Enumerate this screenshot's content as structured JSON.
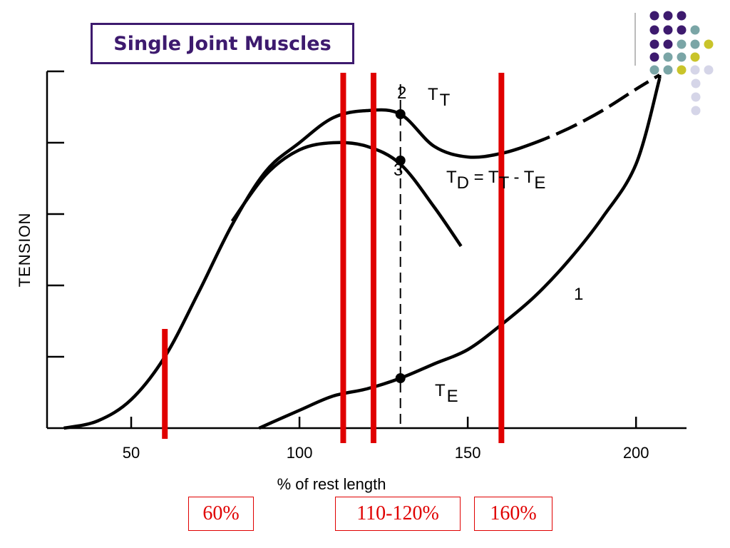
{
  "slide": {
    "title": "Single Joint Muscles",
    "highlights": [
      "60%",
      "110-120%",
      "160%"
    ]
  },
  "colors": {
    "accent": "#3d1a6e",
    "highlight": "#e00000",
    "dots": [
      "#3d1a6e",
      "#7aa5a6",
      "#c9c42a",
      "#d5d5e8"
    ]
  },
  "chart_data": {
    "type": "line",
    "title": "",
    "xlabel": "% of rest length",
    "ylabel": "TENSION",
    "xlim": [
      25,
      215
    ],
    "ylim": [
      0,
      5
    ],
    "xticks": [
      50,
      100,
      150,
      200
    ],
    "xtick_labels": [
      "50",
      "100",
      "150",
      "200"
    ],
    "yticks": [
      1,
      2,
      3,
      4,
      5
    ],
    "series": [
      {
        "name": "1",
        "x": [
          88,
          100,
          110,
          120,
          130,
          140,
          150,
          160,
          170,
          180,
          190,
          200,
          207
        ],
        "y": [
          0.0,
          0.25,
          0.45,
          0.55,
          0.7,
          0.9,
          1.1,
          1.45,
          1.85,
          2.35,
          2.95,
          3.7,
          4.9
        ]
      },
      {
        "name": "2",
        "x": [
          30,
          40,
          50,
          60,
          70,
          80,
          90,
          100,
          110,
          120,
          130,
          140,
          150,
          160,
          170,
          180,
          190,
          200,
          207
        ],
        "y": [
          0.0,
          0.1,
          0.4,
          1.0,
          1.9,
          2.85,
          3.6,
          4.0,
          4.35,
          4.45,
          4.4,
          3.95,
          3.8,
          3.85,
          4.0,
          4.2,
          4.45,
          4.75,
          4.95
        ]
      },
      {
        "name": "3",
        "x": [
          80,
          90,
          100,
          110,
          120,
          130,
          140,
          148
        ],
        "y": [
          2.9,
          3.55,
          3.9,
          4.0,
          3.95,
          3.7,
          3.1,
          2.55
        ]
      }
    ],
    "markers": [
      {
        "label": "2",
        "sub_label": "TT",
        "x": 130,
        "y": 4.4
      },
      {
        "label": "3",
        "sub_label": "TD = TT - TE",
        "x": 130,
        "y": 3.75
      },
      {
        "label": "",
        "sub_label": "TE",
        "x": 130,
        "y": 0.7
      }
    ],
    "annotations": {
      "tt": {
        "main": "T",
        "sub": "T"
      },
      "te": {
        "main": "T",
        "sub": "E"
      },
      "td": {
        "main": "T",
        "sub": "D",
        "eq": "= T",
        "eq_sub": "T",
        "minus": "- T",
        "minus_sub": "E"
      },
      "curve1": "1",
      "curve2": "2",
      "curve3": "3"
    },
    "vertical_lines": [
      60,
      113,
      122,
      160
    ],
    "dashed_line_x": 130,
    "dashed_segment_x": [
      178,
      200
    ]
  }
}
